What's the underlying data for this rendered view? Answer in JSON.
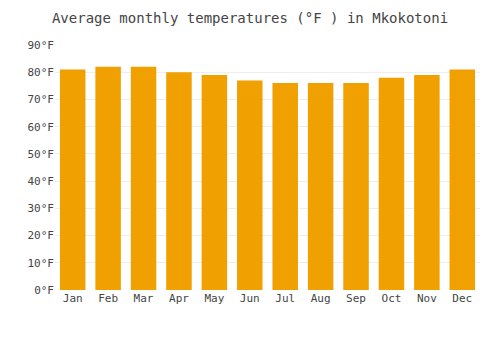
{
  "chart_data": {
    "type": "bar",
    "title": "Average monthly temperatures (°F ) in Mkokotoni",
    "categories": [
      "Jan",
      "Feb",
      "Mar",
      "Apr",
      "May",
      "Jun",
      "Jul",
      "Aug",
      "Sep",
      "Oct",
      "Nov",
      "Dec"
    ],
    "values": [
      81,
      82,
      82,
      80,
      79,
      77,
      76,
      76,
      76,
      78,
      79,
      81
    ],
    "color": "#F0A000",
    "ylim": [
      0,
      90
    ],
    "yticks": [
      {
        "value": 0,
        "label": "0°F"
      },
      {
        "value": 10,
        "label": "10°F"
      },
      {
        "value": 20,
        "label": "20°F"
      },
      {
        "value": 30,
        "label": "30°F"
      },
      {
        "value": 40,
        "label": "40°F"
      },
      {
        "value": 50,
        "label": "50°F"
      },
      {
        "value": 60,
        "label": "60°F"
      },
      {
        "value": 70,
        "label": "70°F"
      },
      {
        "value": 80,
        "label": "80°F"
      },
      {
        "value": 90,
        "label": "90°F"
      }
    ],
    "grid": true
  }
}
